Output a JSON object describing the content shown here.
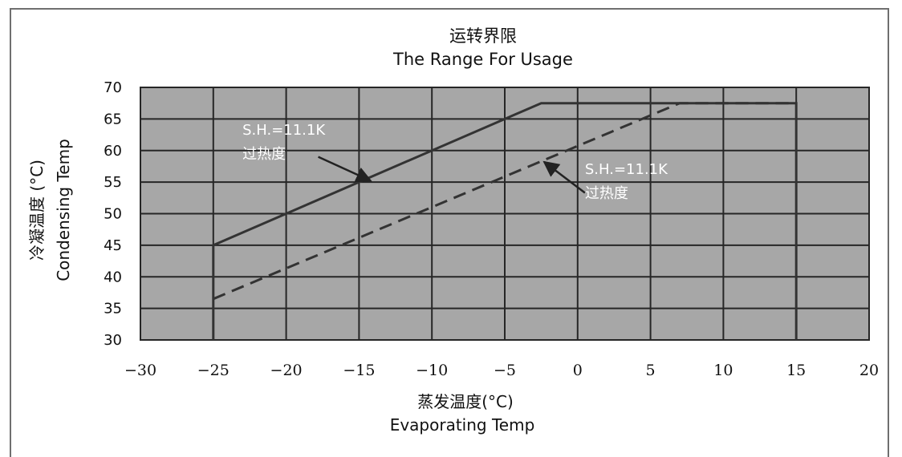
{
  "chart_data": {
    "type": "line",
    "title": "运转界限",
    "subtitle": "The Range For Usage",
    "xlabel_cn": "蒸发温度(°C)",
    "xlabel": "Evaporating Temp",
    "ylabel_cn": "冷凝温度 (°C)",
    "ylabel": "Condensing Temp",
    "xlim": [
      -30,
      20
    ],
    "ylim": [
      30,
      70
    ],
    "xticks": [
      -30,
      -25,
      -20,
      -15,
      -10,
      -5,
      0,
      5,
      10,
      15,
      20
    ],
    "yticks": [
      30,
      35,
      40,
      45,
      50,
      55,
      60,
      65,
      70
    ],
    "xtick_labels": [
      "−30",
      "−25",
      "−20",
      "−15",
      "−10",
      "−5",
      "0",
      "5",
      "10",
      "15",
      "20"
    ],
    "ytick_labels": [
      "30",
      "35",
      "40",
      "45",
      "50",
      "55",
      "60",
      "65",
      "70"
    ],
    "grid": true,
    "plot_background": "#a7a7a7",
    "series": [
      {
        "style": "solid",
        "color": "#333333",
        "x": [
          -25,
          -25,
          -2.5,
          15,
          15
        ],
        "y": [
          30,
          45,
          67.5,
          67.5,
          30
        ]
      },
      {
        "style": "dashed",
        "color": "#333333",
        "x": [
          -25,
          7,
          15
        ],
        "y": [
          36.5,
          67.5,
          67.5
        ]
      }
    ],
    "annotations": [
      {
        "line1": "S.H.=11.1K",
        "line2": "过热度",
        "text_at": [
          -23,
          62.5
        ],
        "arrow_from": [
          -17.8,
          59.0
        ],
        "arrow_to": [
          -14.2,
          55.2
        ]
      },
      {
        "line1": "S.H.=11.1K",
        "line2": "过热度",
        "text_at": [
          0.5,
          56.3
        ],
        "arrow_from": [
          0.5,
          53.3
        ],
        "arrow_to": [
          -2.3,
          58.2
        ]
      }
    ]
  }
}
